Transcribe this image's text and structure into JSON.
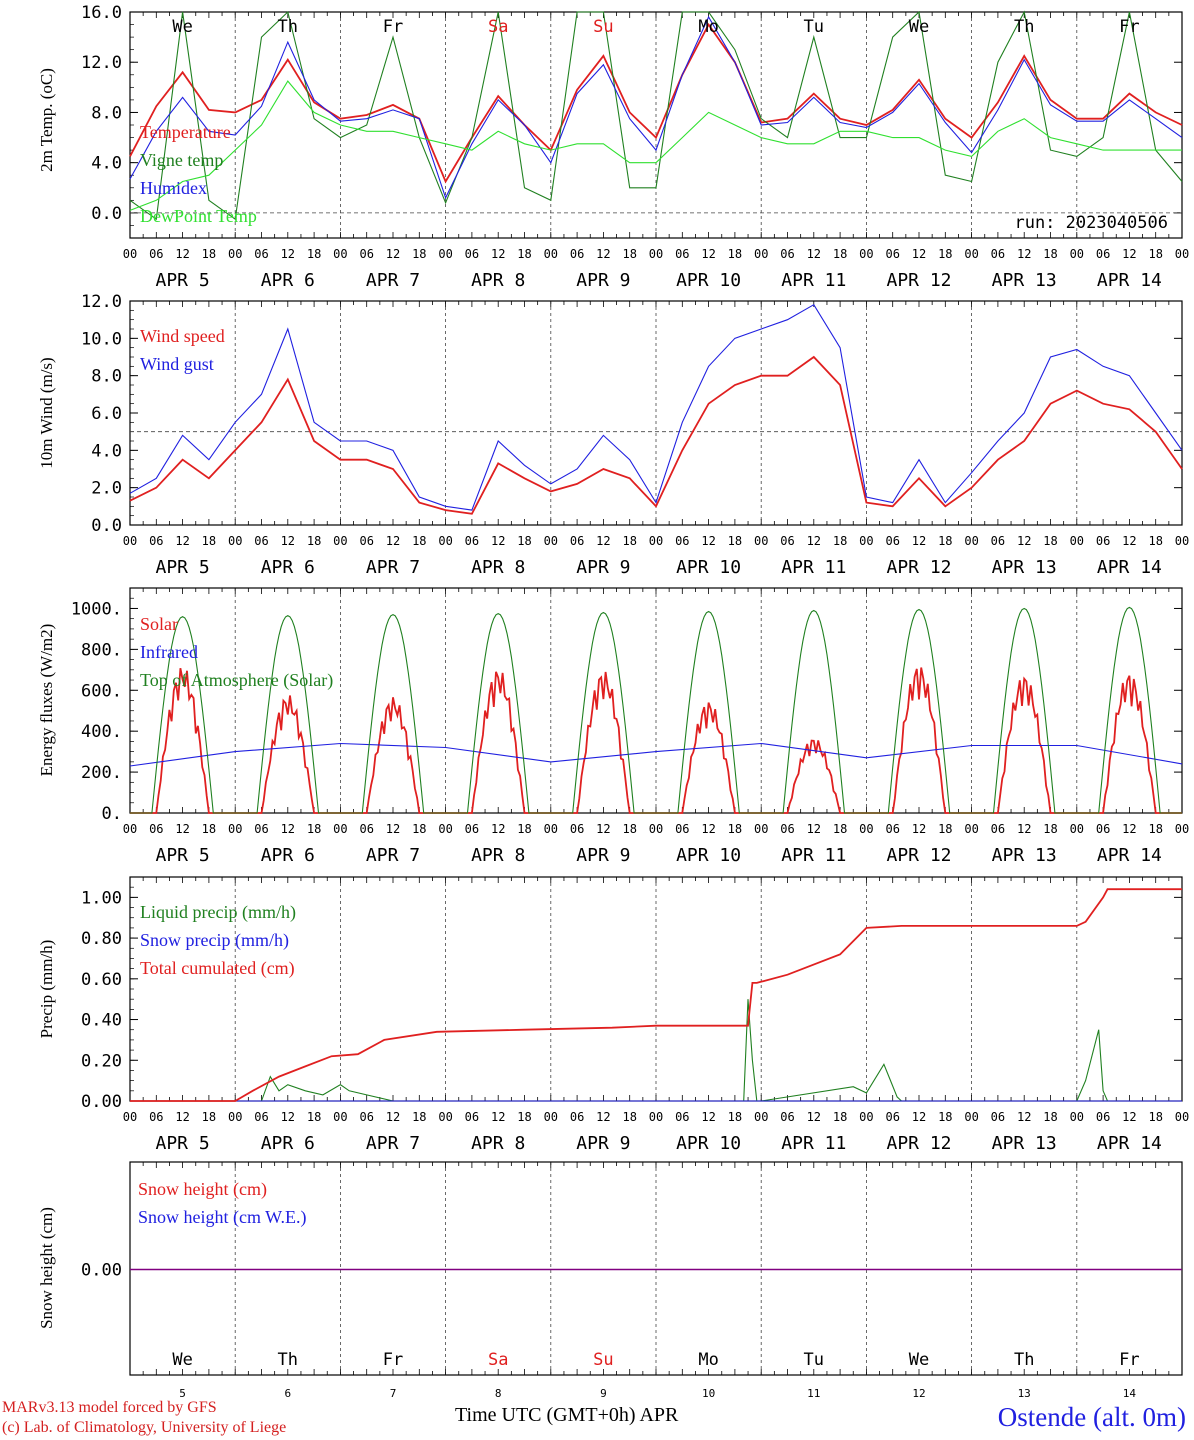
{
  "footer": {
    "model": "MARv3.13 model forced by GFS",
    "copyright": "(c) Lab. of Climatology, University of Liege",
    "xlabel": "Time UTC (GMT+0h) APR",
    "station": "Ostende (alt. 0m)"
  },
  "days": [
    "APR  5",
    "APR  6",
    "APR  7",
    "APR  8",
    "APR  9",
    "APR 10",
    "APR 11",
    "APR 12",
    "APR 13",
    "APR 14"
  ],
  "weekdays": [
    {
      "label": "We",
      "color": "#000000"
    },
    {
      "label": "Th",
      "color": "#000000"
    },
    {
      "label": "Fr",
      "color": "#000000"
    },
    {
      "label": "Sa",
      "color": "#e02020"
    },
    {
      "label": "Su",
      "color": "#e02020"
    },
    {
      "label": "Mo",
      "color": "#000000"
    },
    {
      "label": "Tu",
      "color": "#000000"
    },
    {
      "label": "We",
      "color": "#000000"
    },
    {
      "label": "Th",
      "color": "#000000"
    },
    {
      "label": "Fr",
      "color": "#000000"
    }
  ],
  "day_numbers": [
    "5",
    "6",
    "7",
    "8",
    "9",
    "10",
    "11",
    "12",
    "13",
    "14"
  ],
  "hour_ticks": [
    "00",
    "06",
    "12",
    "18"
  ],
  "colors": {
    "red": "#e02020",
    "green": "#208020",
    "blue": "#2020e0",
    "lightgreen": "#30e030",
    "purple": "#800080"
  },
  "chart_data": [
    {
      "type": "line",
      "ylabel": "2m Temp. (oC)",
      "ylim": [
        -2,
        16
      ],
      "yticks": [
        "0.0",
        "4.0",
        "8.0",
        "12.0",
        "16.0"
      ],
      "ref_line": 0,
      "annotation": "run: 2023040506",
      "x_unit": "hours since APR 5 00 UTC",
      "series": [
        {
          "name": "Temperature",
          "color": "red",
          "x": [
            0,
            6,
            12,
            18,
            24,
            30,
            36,
            42,
            48,
            54,
            60,
            66,
            72,
            78,
            84,
            90,
            96,
            102,
            108,
            114,
            120,
            126,
            132,
            138,
            144,
            150,
            156,
            162,
            168,
            174,
            180,
            186,
            192,
            198,
            204,
            210,
            216,
            222,
            228,
            234,
            240
          ],
          "values": [
            4.5,
            8.5,
            11.2,
            8.2,
            8.0,
            9.0,
            12.2,
            8.8,
            7.5,
            7.8,
            8.6,
            7.5,
            2.5,
            6.0,
            9.3,
            7.0,
            5.0,
            9.8,
            12.5,
            8.0,
            6.0,
            11.0,
            15.0,
            12.0,
            7.2,
            7.5,
            9.5,
            7.5,
            7.0,
            8.2,
            10.6,
            7.5,
            6.0,
            8.8,
            12.5,
            9.0,
            7.5,
            7.5,
            9.5,
            8.0,
            7.0
          ]
        },
        {
          "name": "Vigne temp",
          "color": "green",
          "x": [
            0,
            6,
            12,
            18,
            24,
            30,
            36,
            42,
            48,
            54,
            60,
            66,
            72,
            78,
            84,
            90,
            96,
            102,
            108,
            114,
            120,
            126,
            132,
            138,
            144,
            150,
            156,
            162,
            168,
            174,
            180,
            186,
            192,
            198,
            204,
            210,
            216,
            222,
            228,
            234,
            240
          ],
          "values": [
            1.0,
            -0.5,
            16.0,
            1.0,
            -0.5,
            14.0,
            16.0,
            7.5,
            6.0,
            7.0,
            14.0,
            6.0,
            0.8,
            6.0,
            16.0,
            2.0,
            1.0,
            16.0,
            16.0,
            2.0,
            2.0,
            16.0,
            16.0,
            13.0,
            7.5,
            6.0,
            14.0,
            6.0,
            6.0,
            14.0,
            16.0,
            3.0,
            2.5,
            12.0,
            16.0,
            5.0,
            4.5,
            6.0,
            16.0,
            5.0,
            2.5
          ]
        },
        {
          "name": "Humidex",
          "color": "blue",
          "x": [
            0,
            6,
            12,
            18,
            24,
            30,
            36,
            42,
            48,
            54,
            60,
            66,
            72,
            78,
            84,
            90,
            96,
            102,
            108,
            114,
            120,
            126,
            132,
            138,
            144,
            150,
            156,
            162,
            168,
            174,
            180,
            186,
            192,
            198,
            204,
            210,
            216,
            222,
            228,
            234,
            240
          ],
          "values": [
            2.7,
            6.5,
            9.2,
            6.5,
            6.2,
            8.5,
            13.6,
            9.0,
            7.3,
            7.5,
            8.2,
            7.5,
            1.2,
            5.5,
            9.0,
            7.0,
            4.0,
            9.5,
            11.8,
            7.5,
            5.0,
            11.0,
            15.6,
            12.0,
            7.0,
            7.2,
            9.2,
            7.2,
            6.8,
            8.0,
            10.3,
            7.2,
            4.8,
            8.2,
            12.2,
            8.6,
            7.3,
            7.3,
            9.0,
            7.5,
            6.0
          ]
        },
        {
          "name": "DewPoint Temp",
          "color": "lightgreen",
          "x": [
            0,
            6,
            12,
            18,
            24,
            30,
            36,
            42,
            48,
            54,
            60,
            66,
            72,
            78,
            84,
            90,
            96,
            102,
            108,
            114,
            120,
            126,
            132,
            138,
            144,
            150,
            156,
            162,
            168,
            174,
            180,
            186,
            192,
            198,
            204,
            210,
            216,
            222,
            228,
            234,
            240
          ],
          "values": [
            0.2,
            1.0,
            2.5,
            3.0,
            5.0,
            7.0,
            10.5,
            8.0,
            7.0,
            6.5,
            6.5,
            6.0,
            5.5,
            5.0,
            6.5,
            5.5,
            5.0,
            5.5,
            5.5,
            4.0,
            4.0,
            6.0,
            8.0,
            7.0,
            6.0,
            5.5,
            5.5,
            6.5,
            6.5,
            6.0,
            6.0,
            5.0,
            4.5,
            6.5,
            7.5,
            6.0,
            5.5,
            5.0,
            5.0,
            5.0,
            5.0
          ]
        }
      ]
    },
    {
      "type": "line",
      "ylabel": "10m Wind (m/s)",
      "ylim": [
        0,
        12
      ],
      "yticks": [
        "0.0",
        "2.0",
        "4.0",
        "6.0",
        "8.0",
        "10.0",
        "12.0"
      ],
      "ref_line": 5,
      "x_unit": "hours since APR 5 00 UTC",
      "series": [
        {
          "name": "Wind speed",
          "color": "red",
          "x": [
            0,
            6,
            12,
            18,
            24,
            30,
            36,
            42,
            48,
            54,
            60,
            66,
            72,
            78,
            84,
            90,
            96,
            102,
            108,
            114,
            120,
            126,
            132,
            138,
            144,
            150,
            156,
            162,
            168,
            174,
            180,
            186,
            192,
            198,
            204,
            210,
            216,
            222,
            228,
            234,
            240
          ],
          "values": [
            1.3,
            2.0,
            3.5,
            2.5,
            4.0,
            5.5,
            7.8,
            4.5,
            3.5,
            3.5,
            3.0,
            1.2,
            0.8,
            0.6,
            3.3,
            2.5,
            1.8,
            2.2,
            3.0,
            2.5,
            1.0,
            4.0,
            6.5,
            7.5,
            8.0,
            8.0,
            9.0,
            7.5,
            1.2,
            1.0,
            2.5,
            1.0,
            2.0,
            3.5,
            4.5,
            6.5,
            7.2,
            6.5,
            6.2,
            5.0,
            3.0
          ]
        },
        {
          "name": "Wind gust",
          "color": "blue",
          "x": [
            0,
            6,
            12,
            18,
            24,
            30,
            36,
            42,
            48,
            54,
            60,
            66,
            72,
            78,
            84,
            90,
            96,
            102,
            108,
            114,
            120,
            126,
            132,
            138,
            144,
            150,
            156,
            162,
            168,
            174,
            180,
            186,
            192,
            198,
            204,
            210,
            216,
            222,
            228,
            234,
            240
          ],
          "values": [
            1.7,
            2.5,
            4.8,
            3.5,
            5.5,
            7.0,
            10.5,
            5.5,
            4.5,
            4.5,
            4.0,
            1.5,
            1.0,
            0.8,
            4.5,
            3.2,
            2.2,
            3.0,
            4.8,
            3.5,
            1.2,
            5.5,
            8.5,
            10.0,
            10.5,
            11.0,
            11.8,
            9.5,
            1.5,
            1.2,
            3.5,
            1.2,
            2.8,
            4.5,
            6.0,
            9.0,
            9.4,
            8.5,
            8.0,
            6.0,
            4.0
          ]
        }
      ]
    },
    {
      "type": "line",
      "ylabel": "Energy fluxes (W/m2)",
      "ylim": [
        0,
        1100
      ],
      "yticks": [
        "0.",
        "200.",
        "400.",
        "600.",
        "800.",
        "1000."
      ],
      "x_unit": "hours since APR 5 00 UTC",
      "series": [
        {
          "name": "Solar",
          "color": "red",
          "daily_peak": [
            720,
            580,
            570,
            710,
            700,
            550,
            370,
            730,
            680,
            690
          ]
        },
        {
          "name": "Infrared",
          "color": "blue",
          "x": [
            0,
            24,
            48,
            72,
            96,
            120,
            144,
            168,
            192,
            216,
            240
          ],
          "values": [
            230,
            300,
            340,
            320,
            250,
            300,
            340,
            270,
            330,
            330,
            240
          ]
        },
        {
          "name": "Top of Atmosphere (Solar)",
          "color": "green",
          "daily_peak": [
            960,
            965,
            970,
            975,
            980,
            985,
            990,
            995,
            1000,
            1005
          ]
        }
      ]
    },
    {
      "type": "line",
      "ylabel": "Precip (mm/h)",
      "ylim": [
        0,
        1.1
      ],
      "yticks": [
        "0.00",
        "0.20",
        "0.40",
        "0.60",
        "0.80",
        "1.00"
      ],
      "x_unit": "hours since APR 5 00 UTC",
      "series": [
        {
          "name": "Liquid precip (mm/h)",
          "color": "green",
          "x": [
            0,
            30,
            32,
            34,
            36,
            40,
            44,
            48,
            50,
            54,
            60,
            100,
            140,
            141,
            142,
            143,
            144,
            165,
            168,
            172,
            175,
            176,
            178,
            180,
            216,
            218,
            221,
            222,
            223,
            224,
            240
          ],
          "values": [
            0,
            0,
            0.12,
            0.05,
            0.08,
            0.05,
            0.03,
            0.08,
            0.05,
            0.03,
            0,
            0,
            0,
            0.5,
            0.2,
            0,
            0,
            0.07,
            0.04,
            0.18,
            0.02,
            0,
            0,
            0,
            0,
            0.1,
            0.35,
            0.05,
            0,
            0,
            0
          ]
        },
        {
          "name": "Snow precip (mm/h)",
          "color": "blue",
          "x": [
            0,
            240
          ],
          "values": [
            0,
            0
          ]
        },
        {
          "name": "Total cumulated (cm)",
          "color": "red",
          "x": [
            0,
            24,
            28,
            34,
            40,
            46,
            52,
            58,
            70,
            90,
            110,
            120,
            141,
            142,
            143,
            150,
            162,
            168,
            176,
            216,
            218,
            222,
            223,
            224,
            240
          ],
          "values": [
            0,
            0,
            0.05,
            0.12,
            0.17,
            0.22,
            0.23,
            0.3,
            0.34,
            0.35,
            0.36,
            0.37,
            0.37,
            0.58,
            0.58,
            0.62,
            0.72,
            0.85,
            0.86,
            0.86,
            0.88,
            1.0,
            1.04,
            1.04,
            1.04
          ]
        }
      ]
    },
    {
      "type": "line",
      "ylabel": "Snow height (cm)",
      "yticks": [
        "0.00"
      ],
      "x_unit": "hours since APR 5 00 UTC",
      "series": [
        {
          "name": "Snow height (cm)",
          "color": "red",
          "x": [
            0,
            240
          ],
          "values": [
            0,
            0
          ]
        },
        {
          "name": "Snow height (cm W.E.)",
          "color": "blue",
          "x": [
            0,
            240
          ],
          "values": [
            0,
            0
          ]
        }
      ]
    }
  ]
}
